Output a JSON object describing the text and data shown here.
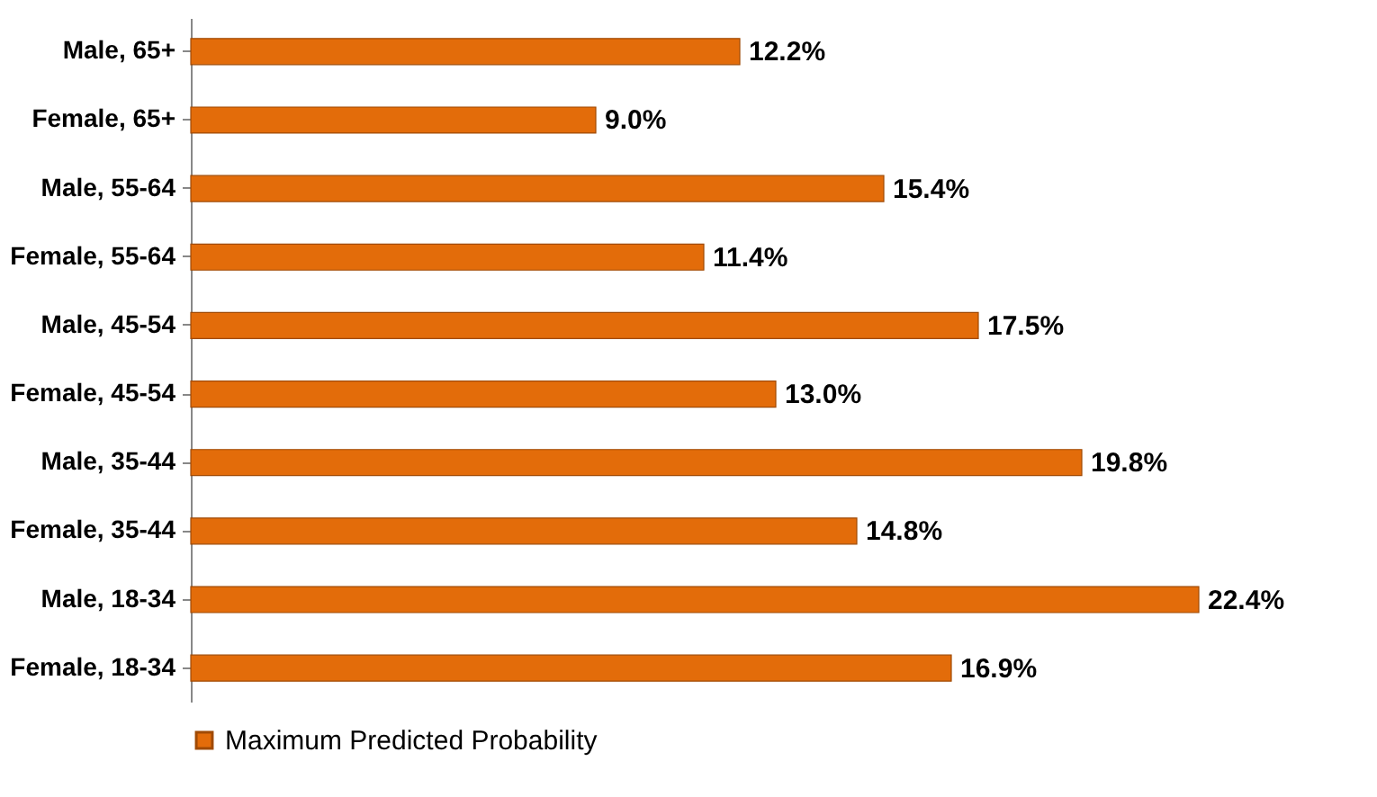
{
  "chart_data": {
    "type": "bar",
    "orientation": "horizontal",
    "categories": [
      "Male, 65+",
      "Female, 65+",
      "Male, 55-64",
      "Female, 55-64",
      "Male, 45-54",
      "Female, 45-54",
      "Male, 35-44",
      "Female, 35-44",
      "Male, 18-34",
      "Female, 18-34"
    ],
    "series": [
      {
        "name": "Maximum Predicted Probability",
        "color": "#e36c0a",
        "values": [
          12.2,
          9.0,
          15.4,
          11.4,
          17.5,
          13.0,
          19.8,
          14.8,
          22.4,
          16.9
        ],
        "value_labels": [
          "12.2%",
          "9.0%",
          "15.4%",
          "11.4%",
          "17.5%",
          "13.0%",
          "19.8%",
          "14.8%",
          "22.4%",
          "16.9%"
        ]
      }
    ],
    "legend": "bottom"
  }
}
